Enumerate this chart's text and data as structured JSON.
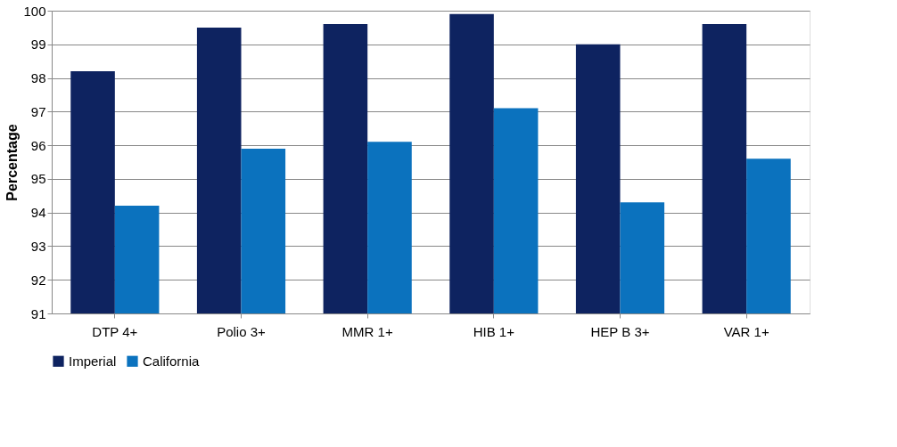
{
  "chart_data": {
    "type": "bar",
    "ylabel": "Percentage",
    "categories": [
      "DTP 4+",
      "Polio 3+",
      "MMR 1+",
      "HIB 1+",
      "HEP B 3+",
      "VAR 1+"
    ],
    "series": [
      {
        "name": "Imperial",
        "color": "#0e2360",
        "values": [
          98.2,
          99.5,
          99.6,
          99.9,
          99.0,
          99.6
        ]
      },
      {
        "name": "California",
        "color": "#0b72be",
        "values": [
          94.2,
          95.9,
          96.1,
          97.1,
          94.3,
          95.6
        ]
      }
    ],
    "ylim": [
      91,
      100
    ],
    "yticks": [
      91,
      92,
      93,
      94,
      95,
      96,
      97,
      98,
      99,
      100
    ],
    "grid": "y",
    "legend": "bottom"
  }
}
